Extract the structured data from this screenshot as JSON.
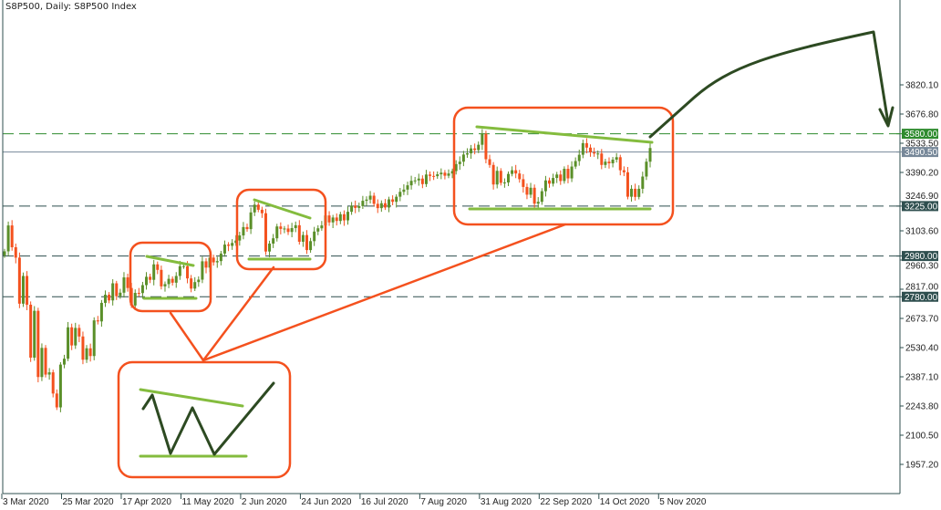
{
  "chart_data": {
    "type": "candlestick",
    "title": "S8P500, Daily:  S8P500 Index",
    "ylim": [
      1900,
      3950
    ],
    "y_ticks": [
      "3820.10",
      "3676.80",
      "3533.50",
      "3390.20",
      "3246.90",
      "3103.60",
      "2960.30",
      "2817.00",
      "2673.70",
      "2530.40",
      "2387.10",
      "2243.80",
      "2100.50",
      "1957.20"
    ],
    "x_ticks": [
      {
        "label": "3 Mar 2020",
        "index": 0
      },
      {
        "label": "25 Mar 2020",
        "index": 16
      },
      {
        "label": "17 Apr 2020",
        "index": 32
      },
      {
        "label": "11 May 2020",
        "index": 48
      },
      {
        "label": "2 Jun 2020",
        "index": 64
      },
      {
        "label": "24 Jun 2020",
        "index": 80
      },
      {
        "label": "16 Jul 2020",
        "index": 96
      },
      {
        "label": "7 Aug 2020",
        "index": 112
      },
      {
        "label": "31 Aug 2020",
        "index": 128
      },
      {
        "label": "22 Sep 2020",
        "index": 144
      },
      {
        "label": "14 Oct 2020",
        "index": 160
      },
      {
        "label": "5 Nov 2020",
        "index": 176
      }
    ],
    "close": [
      3003,
      3130,
      3023,
      2972,
      2746,
      2882,
      2741,
      2481,
      2711,
      2386,
      2529,
      2398,
      2409,
      2305,
      2237,
      2447,
      2476,
      2630,
      2541,
      2627,
      2585,
      2471,
      2527,
      2489,
      2664,
      2659,
      2750,
      2790,
      2762,
      2846,
      2783,
      2800,
      2875,
      2823,
      2737,
      2799,
      2798,
      2837,
      2878,
      2863,
      2939,
      2912,
      2831,
      2842,
      2868,
      2849,
      2882,
      2930,
      2930,
      2870,
      2820,
      2852,
      2864,
      2954,
      2923,
      2972,
      2949,
      2955,
      2992,
      3036,
      3030,
      3044,
      3056,
      3081,
      3122,
      3112,
      3194,
      3232,
      3207,
      3190,
      3002,
      3041,
      3067,
      3125,
      3113,
      3115,
      3098,
      3117,
      3131,
      3050,
      3083,
      3009,
      3053,
      3100,
      3116,
      3130,
      3179,
      3145,
      3169,
      3152,
      3185,
      3155,
      3197,
      3227,
      3216,
      3225,
      3251,
      3257,
      3276,
      3236,
      3215,
      3239,
      3218,
      3258,
      3246,
      3271,
      3295,
      3306,
      3327,
      3349,
      3351,
      3360,
      3333,
      3380,
      3373,
      3372,
      3381,
      3389,
      3374,
      3385,
      3397,
      3431,
      3443,
      3478,
      3484,
      3508,
      3500,
      3526,
      3580,
      3455,
      3427,
      3331,
      3398,
      3339,
      3341,
      3383,
      3401,
      3385,
      3357,
      3319,
      3281,
      3315,
      3237,
      3246,
      3298,
      3351,
      3335,
      3363,
      3380,
      3348,
      3408,
      3361,
      3419,
      3446,
      3477,
      3534,
      3512,
      3489,
      3483,
      3483,
      3427,
      3443,
      3435,
      3453,
      3465,
      3401,
      3391,
      3271,
      3310,
      3270,
      3310,
      3370,
      3443,
      3510
    ],
    "levels": [
      {
        "label": "3580.00",
        "value": 3580,
        "color": "#2e8b2e",
        "style": "dashed"
      },
      {
        "label": "3490.50",
        "value": 3490.5,
        "color": "#778899",
        "style": "solid"
      },
      {
        "label": "3225.00",
        "value": 3225,
        "color": "#2f4f4f",
        "style": "dashed"
      },
      {
        "label": "2980.00",
        "value": 2980,
        "color": "#2f4f4f",
        "style": "dashed"
      },
      {
        "label": "2780.00",
        "value": 2780,
        "color": "#2f4f4f",
        "style": "dashed"
      }
    ],
    "colors": {
      "bull": "#5a8f29",
      "bear": "#f4511e",
      "annotation_box": "#f4511e",
      "pattern_line": "#84bc3e",
      "arrow": "#2d4a22"
    },
    "grid": false
  }
}
